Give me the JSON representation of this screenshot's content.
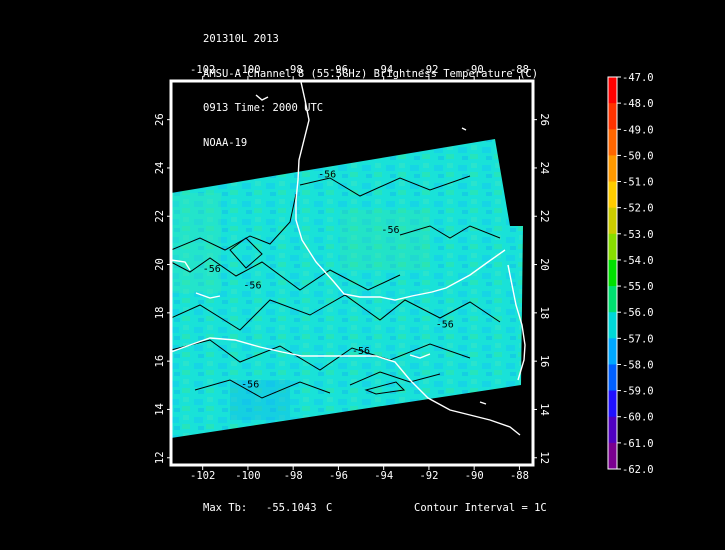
{
  "header": {
    "line1": "201310L 2013",
    "line2": "AMSU-A Channel 8 (55.5GHz) Brightness Temperature (C)",
    "line3": "0913 Time: 2000 UTC",
    "line4": "NOAA-19"
  },
  "map": {
    "lon_ticks": [
      "-102",
      "-100",
      "-98",
      "-96",
      "-94",
      "-92",
      "-90",
      "-88"
    ],
    "lon_values": [
      -102,
      -100,
      -98,
      -96,
      -94,
      -92,
      -90,
      -88
    ],
    "lat_ticks": [
      "12",
      "14",
      "16",
      "18",
      "20",
      "22",
      "24",
      "26"
    ],
    "lat_values": [
      12,
      14,
      16,
      18,
      20,
      22,
      24,
      26
    ],
    "lon_range": [
      -103.4,
      -87.4
    ],
    "lat_range": [
      11.7,
      27.6
    ],
    "contour_labels": [
      {
        "text": "-56",
        "lon": -96.5,
        "lat": 23.6
      },
      {
        "text": "-56",
        "lon": -101.6,
        "lat": 19.7
      },
      {
        "text": "-56",
        "lon": -99.8,
        "lat": 19.0
      },
      {
        "text": "-56",
        "lon": -93.7,
        "lat": 21.3
      },
      {
        "text": "-56",
        "lon": -91.3,
        "lat": 17.4
      },
      {
        "text": "-56",
        "lon": -95.0,
        "lat": 16.3
      },
      {
        "text": "-56",
        "lon": -99.9,
        "lat": 14.9
      }
    ]
  },
  "colorbar": {
    "labels": [
      "-47.0",
      "-48.0",
      "-49.0",
      "-50.0",
      "-51.0",
      "-52.0",
      "-53.0",
      "-54.0",
      "-55.0",
      "-56.0",
      "-57.0",
      "-58.0",
      "-59.0",
      "-60.0",
      "-61.0",
      "-62.0"
    ],
    "colors": [
      "#ff0000",
      "#ff3300",
      "#ff6600",
      "#ff9900",
      "#ffcc00",
      "#cccc00",
      "#88dd00",
      "#00e000",
      "#00e070",
      "#00d8d8",
      "#00a8ff",
      "#0060ff",
      "#2010ff",
      "#5000c0",
      "#7a0090",
      "#ffffff"
    ]
  },
  "footer": {
    "max_label": "Max Tb:",
    "max_value": "-55.1043",
    "max_unit": "C",
    "contour": "Contour Interval = 1C"
  }
}
